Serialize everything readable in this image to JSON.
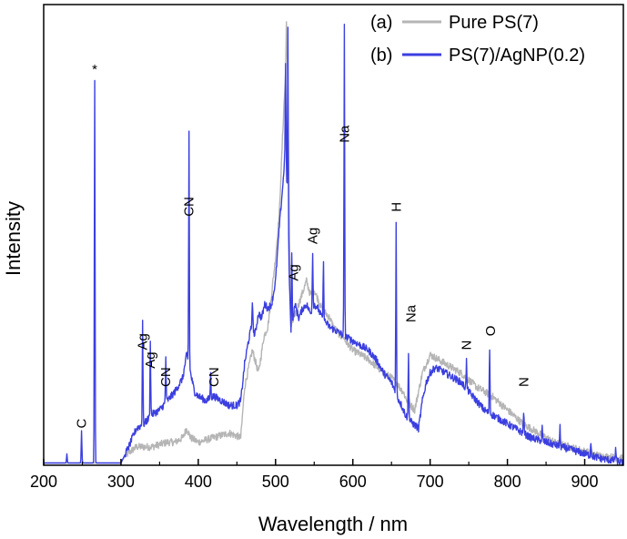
{
  "chart_data": {
    "type": "line",
    "title": "",
    "xlabel": "Wavelength / nm",
    "ylabel": "Intensity",
    "xlim": [
      200,
      950
    ],
    "ylim": [
      0,
      100
    ],
    "xticks": [
      200,
      300,
      400,
      500,
      600,
      700,
      800,
      900
    ],
    "y_tick_labels_shown": false,
    "grid": false,
    "legend_position": "top-right",
    "series": [
      {
        "id": "a",
        "marker": "(a)",
        "name": "Pure PS(7)",
        "color": "#b5b5b5",
        "x": [
          200,
          300,
          305,
          320,
          340,
          360,
          370,
          380,
          385,
          390,
          400,
          420,
          440,
          455,
          460,
          470,
          478,
          485,
          490,
          500,
          505,
          510,
          513,
          514,
          516,
          518,
          520,
          530,
          540,
          545,
          550,
          555,
          560,
          565,
          570,
          575,
          580,
          585,
          586,
          588,
          590,
          595,
          600,
          620,
          640,
          650,
          655,
          657,
          660,
          665,
          670,
          672,
          675,
          680,
          690,
          700,
          720,
          740,
          760,
          780,
          800,
          820,
          840,
          860,
          880,
          900,
          920,
          950
        ],
        "y": [
          0.5,
          0.5,
          2,
          4,
          4,
          5,
          5,
          6,
          8,
          6,
          5,
          6,
          7,
          6,
          17,
          25,
          20,
          28,
          30,
          45,
          55,
          75,
          85,
          97,
          80,
          50,
          30,
          35,
          40,
          37,
          38,
          36,
          34,
          33,
          32,
          30,
          29,
          28,
          28,
          28,
          27,
          26,
          25,
          23,
          20,
          19,
          18,
          18,
          17,
          16,
          14,
          14,
          13,
          12,
          20,
          24,
          22,
          20,
          17,
          15,
          12,
          9,
          7,
          5,
          4,
          3,
          2,
          1.5
        ],
        "peaks": []
      },
      {
        "id": "b",
        "marker": "(b)",
        "name": "PS(7)/AgNP(0.2)",
        "color": "#3b3fe0",
        "x": [
          200,
          300,
          310,
          320,
          330,
          340,
          350,
          360,
          370,
          380,
          385,
          390,
          395,
          400,
          410,
          420,
          430,
          440,
          450,
          455,
          460,
          465,
          470,
          473,
          478,
          482,
          486,
          490,
          495,
          500,
          505,
          510,
          513,
          520,
          525,
          530,
          535,
          540,
          545,
          550,
          555,
          560,
          565,
          570,
          580,
          590,
          600,
          610,
          620,
          630,
          640,
          645,
          650,
          655,
          657,
          660,
          663,
          668,
          672,
          678,
          685,
          690,
          695,
          700,
          705,
          710,
          720,
          730,
          740,
          750,
          760,
          770,
          780,
          790,
          800,
          810,
          820,
          830,
          840,
          850,
          860,
          870,
          880,
          890,
          900,
          910,
          920,
          930,
          940,
          950
        ],
        "y": [
          0.5,
          0.5,
          4,
          8,
          9,
          11,
          12,
          14,
          16,
          19,
          24,
          20,
          16,
          15,
          14,
          15,
          14,
          13,
          13,
          14,
          22,
          27,
          31,
          28,
          33,
          32,
          35,
          34,
          35,
          40,
          52,
          62,
          70,
          28,
          35,
          32,
          34,
          35,
          33,
          35,
          34,
          32,
          31,
          30,
          29,
          28,
          27,
          26,
          25,
          23,
          20,
          19,
          18,
          16,
          15,
          14,
          13,
          11,
          10,
          9,
          8,
          14,
          18,
          20,
          21,
          21,
          20,
          19,
          18,
          16,
          14,
          12,
          11,
          10,
          9,
          8,
          7,
          6,
          5.5,
          5,
          4.5,
          4,
          3.5,
          3,
          2.5,
          2,
          1.5,
          1.2,
          1,
          0.5
        ],
        "peaks": [
          {
            "x": 230,
            "h": 2
          },
          {
            "x": 249,
            "h": 7
          },
          {
            "x": 266,
            "h": 83
          },
          {
            "x": 328,
            "h": 23
          },
          {
            "x": 338,
            "h": 17
          },
          {
            "x": 358,
            "h": 10
          },
          {
            "x": 388,
            "h": 51
          },
          {
            "x": 416,
            "h": 5
          },
          {
            "x": 470,
            "h": 5
          },
          {
            "x": 513,
            "h": 17
          },
          {
            "x": 516,
            "h": 43
          },
          {
            "x": 521,
            "h": 17
          },
          {
            "x": 548,
            "h": 12
          },
          {
            "x": 562,
            "h": 12
          },
          {
            "x": 589,
            "h": 67
          },
          {
            "x": 656,
            "h": 37
          },
          {
            "x": 672,
            "h": 15
          },
          {
            "x": 747,
            "h": 6
          },
          {
            "x": 777,
            "h": 14
          },
          {
            "x": 821,
            "h": 5
          },
          {
            "x": 845,
            "h": 3
          },
          {
            "x": 868,
            "h": 4
          },
          {
            "x": 908,
            "h": 3
          },
          {
            "x": 940,
            "h": 3
          }
        ]
      }
    ],
    "annotations": [
      {
        "text": "C",
        "x": 249,
        "y": 8,
        "vertical": true
      },
      {
        "text": "*",
        "x": 266,
        "y": 85,
        "vertical": false
      },
      {
        "text": "Ag",
        "x": 328,
        "y": 25,
        "vertical": true
      },
      {
        "text": "Ag",
        "x": 338,
        "y": 21,
        "vertical": true
      },
      {
        "text": "CN",
        "x": 358,
        "y": 17,
        "vertical": true
      },
      {
        "text": "CN",
        "x": 388,
        "y": 54,
        "vertical": true
      },
      {
        "text": "CN",
        "x": 420,
        "y": 17,
        "vertical": true
      },
      {
        "text": "Ag",
        "x": 523,
        "y": 40,
        "vertical": true
      },
      {
        "text": "Ag",
        "x": 548,
        "y": 48,
        "vertical": true
      },
      {
        "text": "Na",
        "x": 589,
        "y": 70,
        "vertical": true
      },
      {
        "text": "H",
        "x": 656,
        "y": 55,
        "vertical": true
      },
      {
        "text": "Na",
        "x": 675,
        "y": 31,
        "vertical": true
      },
      {
        "text": "N",
        "x": 747,
        "y": 25,
        "vertical": true
      },
      {
        "text": "O",
        "x": 778,
        "y": 28,
        "vertical": true
      },
      {
        "text": "N",
        "x": 821,
        "y": 17,
        "vertical": true
      }
    ]
  }
}
